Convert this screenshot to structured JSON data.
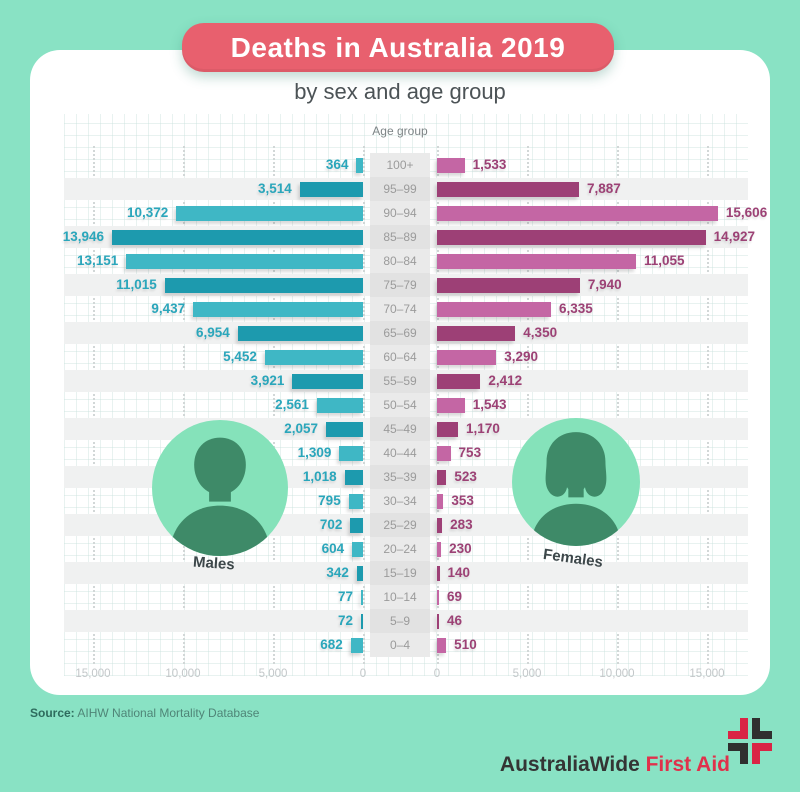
{
  "canvas": {
    "bg": "#89e2c4",
    "card_bg": "#ffffff"
  },
  "header": {
    "title": "Deaths in Australia 2019",
    "subtitle": "by sex and age group",
    "banner_color": "#e8606e",
    "title_color": "#ffffff",
    "subtitle_color": "#4c5356"
  },
  "chart_data": {
    "type": "bar",
    "variant": "population_pyramid",
    "center_axis_title": "Age group",
    "categories": [
      "100+",
      "95–99",
      "90–94",
      "85–89",
      "80–84",
      "75–79",
      "70–74",
      "65–69",
      "60–64",
      "55–59",
      "50–54",
      "45–49",
      "40–44",
      "35–39",
      "30–34",
      "25–29",
      "20–24",
      "15–19",
      "10–14",
      "5–9",
      "0–4"
    ],
    "series": [
      {
        "name": "Males",
        "side": "left",
        "color_light": "#3fb7c5",
        "color_dark": "#1d9aae",
        "label_color": "#2aa6bb",
        "values": [
          364,
          3514,
          10372,
          13946,
          13151,
          11015,
          9437,
          6954,
          5452,
          3921,
          2561,
          2057,
          1309,
          1018,
          795,
          702,
          604,
          342,
          77,
          72,
          682
        ]
      },
      {
        "name": "Females",
        "side": "right",
        "color_light": "#c466a4",
        "color_dark": "#9d4076",
        "label_color": "#9c4175",
        "values": [
          1533,
          7887,
          15606,
          14927,
          11055,
          7940,
          6335,
          4350,
          3290,
          2412,
          1543,
          1170,
          753,
          523,
          353,
          283,
          230,
          140,
          69,
          46,
          510
        ]
      }
    ],
    "xlim": [
      0,
      15000
    ],
    "x_tick_values": [
      0,
      5000,
      10000,
      15000
    ],
    "x_tick_labels": [
      "0",
      "5,000",
      "10,000",
      "15,000"
    ],
    "grid": "dotted vertical lines at 5,000 intervals, alternating grey row bands",
    "row_band_color": "#f0f1f1",
    "center_col_color": "#eaeaea",
    "center_col_color_banded": "#e2e2e2",
    "age_label_color": "#9b9b9b"
  },
  "legend": {
    "male_label": "Males",
    "female_label": "Females",
    "avatar_circle_color": "#85e2ba",
    "avatar_silhouette_color": "#3e8a68"
  },
  "footer": {
    "source_label": "Source:",
    "source_text": " AIHW National Mortality Database",
    "brand": {
      "part1": "AustraliaWide",
      "part2": "First Aid",
      "part1_color": "#343434",
      "part2_color": "#e0314b",
      "mark_red": "#d92445",
      "mark_dark": "#2f2f2f"
    }
  }
}
